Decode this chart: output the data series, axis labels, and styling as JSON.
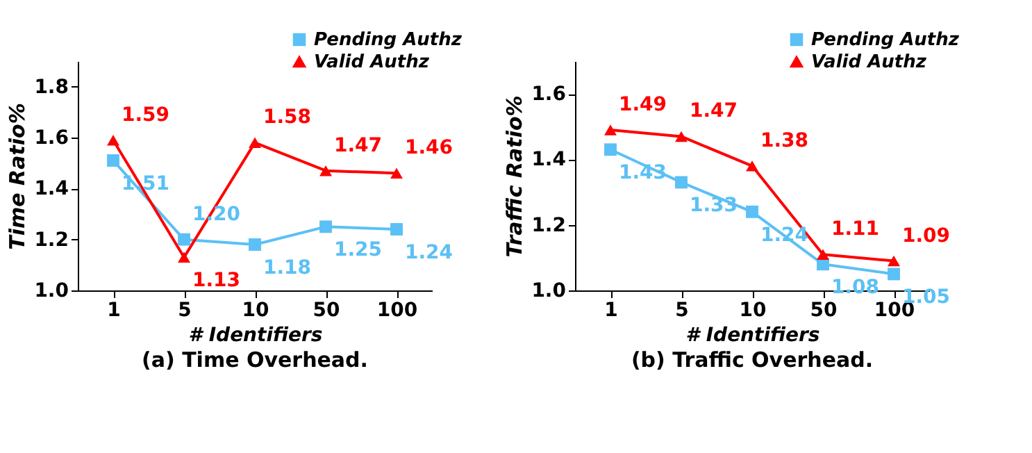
{
  "chart_data": [
    {
      "type": "line",
      "title": "(a) Time Overhead.",
      "xlabel": "# Identifiers",
      "ylabel": "Time Ratio%",
      "categories": [
        "1",
        "5",
        "10",
        "50",
        "100"
      ],
      "ylim": [
        1.0,
        1.9
      ],
      "yticks": [
        {
          "value": 1.0,
          "label": "1.0"
        },
        1.2,
        1.4,
        1.6,
        1.8
      ],
      "grid": false,
      "legend": "top right",
      "line_style": "solid",
      "series": [
        {
          "name": "Pending Authz",
          "color": "#5bc0f5",
          "marker": "square",
          "values": [
            1.51,
            1.2,
            1.18,
            1.25,
            1.24
          ],
          "value_labels": [
            "1.51",
            "1.20",
            "1.18",
            "1.25",
            "1.24"
          ]
        },
        {
          "name": "Valid Authz",
          "color": "#ff0000",
          "marker": "triangle",
          "values": [
            1.59,
            1.13,
            1.58,
            1.47,
            1.46
          ],
          "value_labels": [
            "1.59",
            "1.13",
            "1.58",
            "1.47",
            "1.46"
          ]
        }
      ]
    },
    {
      "type": "line",
      "title": "(b) Traffic Overhead.",
      "xlabel": "# Identifiers",
      "ylabel": "Traffic Ratio%",
      "categories": [
        "1",
        "5",
        "10",
        "50",
        "100"
      ],
      "ylim": [
        1.0,
        1.7
      ],
      "yticks": [
        {
          "value": 1.0,
          "label": "1.0"
        },
        1.2,
        1.4,
        1.6
      ],
      "grid": false,
      "legend": "top right",
      "line_style": "solid",
      "series": [
        {
          "name": "Pending Authz",
          "color": "#5bc0f5",
          "marker": "square",
          "values": [
            1.43,
            1.33,
            1.24,
            1.08,
            1.05
          ],
          "value_labels": [
            "1.43",
            "1.33",
            "1.24",
            "1.08",
            "1.05"
          ]
        },
        {
          "name": "Valid Authz",
          "color": "#ff0000",
          "marker": "triangle",
          "values": [
            1.49,
            1.47,
            1.38,
            1.11,
            1.09
          ],
          "value_labels": [
            "1.49",
            "1.47",
            "1.38",
            "1.11",
            "1.09"
          ]
        }
      ]
    }
  ]
}
